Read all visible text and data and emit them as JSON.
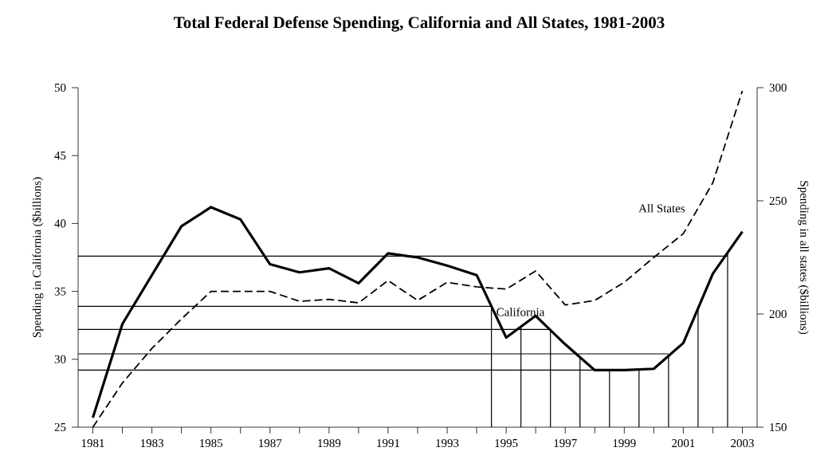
{
  "chart_data": {
    "type": "line",
    "title": "Total Federal Defense Spending, California and All States, 1981-2003",
    "ylabel": "Spending in California ($billions)",
    "y2label": "Spending in all states ($billions)",
    "x": [
      1981,
      1982,
      1983,
      1984,
      1985,
      1986,
      1987,
      1988,
      1989,
      1990,
      1991,
      1992,
      1993,
      1994,
      1995,
      1996,
      1997,
      1998,
      1999,
      2000,
      2001,
      2002,
      2003
    ],
    "series": [
      {
        "name": "California",
        "color": "#000000",
        "line_style": "solid",
        "axis": "y",
        "values": [
          25.7,
          32.6,
          36.2,
          39.8,
          41.2,
          40.3,
          37.0,
          36.4,
          36.7,
          35.6,
          37.8,
          37.5,
          36.9,
          36.2,
          31.6,
          33.2,
          31.1,
          29.2,
          29.2,
          29.3,
          31.2,
          36.3,
          39.4
        ]
      },
      {
        "name": "All States",
        "color": "#000000",
        "line_style": "dashed",
        "axis": "y2",
        "values": [
          150,
          169.5,
          184.8,
          197.8,
          210,
          210,
          210,
          205.6,
          206.5,
          204.9,
          214.8,
          206,
          214,
          212,
          211,
          219,
          204,
          206,
          214,
          225,
          235.5,
          258,
          298.6
        ]
      }
    ],
    "xlim": [
      1980.5,
      2003.5
    ],
    "xticks": [
      1981,
      {
        "value": 1982,
        "label": null
      },
      1983,
      {
        "value": 1984,
        "label": null
      },
      1985,
      {
        "value": 1986,
        "label": null
      },
      1987,
      {
        "value": 1988,
        "label": null
      },
      1989,
      {
        "value": 1990,
        "label": null
      },
      1991,
      {
        "value": 1992,
        "label": null
      },
      1993,
      {
        "value": 1994,
        "label": null
      },
      1995,
      {
        "value": 1996,
        "label": null
      },
      1997,
      {
        "value": 1998,
        "label": null
      },
      1999,
      {
        "value": 2000,
        "label": null
      },
      2001,
      {
        "value": 2002,
        "label": null
      },
      2003
    ],
    "ylim": [
      25,
      50
    ],
    "yticks": [
      25,
      30,
      35,
      40,
      45,
      50
    ],
    "y2lim": [
      150,
      300
    ],
    "y2ticks": [
      150,
      200,
      250,
      300
    ],
    "ref_lines": [
      {
        "axis": "x",
        "value": 1994.5
      },
      {
        "axis": "x",
        "value": 1995.5
      },
      {
        "axis": "x",
        "value": 1996.5
      },
      {
        "axis": "x",
        "value": 1997.5
      },
      {
        "axis": "x",
        "value": 1998.5
      },
      {
        "axis": "x",
        "value": 1999.5
      },
      {
        "axis": "x",
        "value": 2000.5
      },
      {
        "axis": "x",
        "value": 2001.5
      },
      {
        "axis": "x",
        "value": 2002.5
      },
      {
        "axis": "y",
        "value": 37.6
      },
      {
        "axis": "y",
        "value": 33.9
      },
      {
        "axis": "y",
        "value": 32.2
      },
      {
        "axis": "y",
        "value": 30.4
      },
      {
        "axis": "y",
        "value": 29.2
      }
    ],
    "grid": false,
    "marker": "none"
  }
}
